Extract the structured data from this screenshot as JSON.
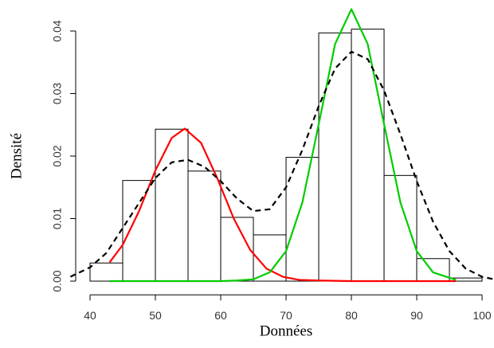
{
  "chart_data": {
    "type": "histogram",
    "x_label": "Données",
    "y_label": "Densité",
    "bins": [
      40,
      45,
      50,
      55,
      60,
      65,
      70,
      75,
      80,
      85,
      90,
      95,
      100
    ],
    "values": [
      0.0029,
      0.0161,
      0.0243,
      0.0176,
      0.0102,
      0.0074,
      0.0198,
      0.0397,
      0.0403,
      0.0169,
      0.0036,
      0.0005
    ],
    "color": "#ffffff",
    "edge_color": "#000000",
    "xlim": [
      37,
      101.8
    ],
    "ylim": [
      -0.0022,
      0.0443
    ],
    "xticks": [
      40,
      50,
      60,
      70,
      80,
      90,
      100
    ],
    "yticks": [
      {
        "value": 0,
        "label": "0.00"
      },
      {
        "value": 0.01,
        "label": "0.01"
      },
      {
        "value": 0.02,
        "label": "0.02"
      },
      {
        "value": 0.03,
        "label": "0.03"
      },
      {
        "value": 0.04,
        "label": "0.04"
      }
    ],
    "lines": [
      {
        "color": "#ff0000",
        "dashed": false,
        "x": [
          43,
          45,
          47.5,
          50,
          52.5,
          54.5,
          57,
          59.5,
          62,
          64.5,
          67,
          69.5,
          72,
          75,
          80,
          85,
          90,
          96
        ],
        "values": [
          0.003,
          0.0058,
          0.0112,
          0.0177,
          0.0229,
          0.0244,
          0.0221,
          0.0164,
          0.01,
          0.005,
          0.002,
          0.0007,
          0.0002,
          0.0001,
          0,
          0,
          0,
          0
        ]
      },
      {
        "color": "#00cc00",
        "dashed": false,
        "x": [
          43,
          60,
          62.5,
          65,
          67.5,
          70,
          72.5,
          75,
          77.5,
          80,
          82.5,
          85,
          87.5,
          90,
          92.5,
          96
        ],
        "values": [
          0,
          0,
          0.0001,
          0.0003,
          0.0014,
          0.0048,
          0.0126,
          0.0251,
          0.0379,
          0.0435,
          0.0379,
          0.0251,
          0.0126,
          0.0048,
          0.0014,
          0.0002
        ]
      },
      {
        "color": "#000000",
        "dashed": true,
        "x": [
          37,
          40,
          42.5,
          45,
          47.5,
          50,
          52.5,
          55,
          57.5,
          60,
          62.5,
          65,
          67.5,
          70,
          72.5,
          75,
          77.5,
          80,
          82.5,
          85,
          87.5,
          90,
          92.5,
          95,
          97.5,
          100,
          101.8
        ],
        "values": [
          0.0007,
          0.0022,
          0.0045,
          0.0085,
          0.0125,
          0.0165,
          0.019,
          0.0194,
          0.0183,
          0.016,
          0.0132,
          0.0112,
          0.0115,
          0.015,
          0.021,
          0.028,
          0.034,
          0.0367,
          0.0355,
          0.0305,
          0.0235,
          0.016,
          0.0095,
          0.0048,
          0.002,
          0.0007,
          0.0003
        ]
      }
    ]
  }
}
